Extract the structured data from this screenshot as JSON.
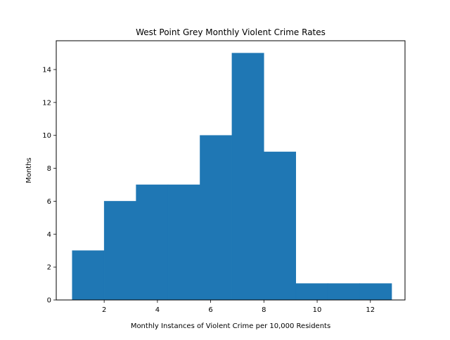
{
  "chart_data": {
    "type": "histogram",
    "title": "West Point Grey Monthly Violent Crime Rates",
    "xlabel": "Monthly Instances of Violent Crime per 10,000 Residents",
    "ylabel": "Months",
    "xlim": [
      0.2,
      13.3
    ],
    "ylim": [
      0,
      15.75
    ],
    "xticks": [
      2,
      4,
      6,
      8,
      10,
      12
    ],
    "yticks": [
      0,
      2,
      4,
      6,
      8,
      10,
      12,
      14
    ],
    "bin_edges": [
      0.8,
      2.0,
      3.2,
      4.4,
      5.6,
      6.8,
      8.0,
      9.2,
      10.4,
      11.6,
      12.8
    ],
    "counts": [
      3,
      6,
      7,
      7,
      10,
      15,
      9,
      1,
      1,
      1
    ],
    "bar_color": "#1f77b4",
    "grid": false,
    "legend": "none"
  }
}
